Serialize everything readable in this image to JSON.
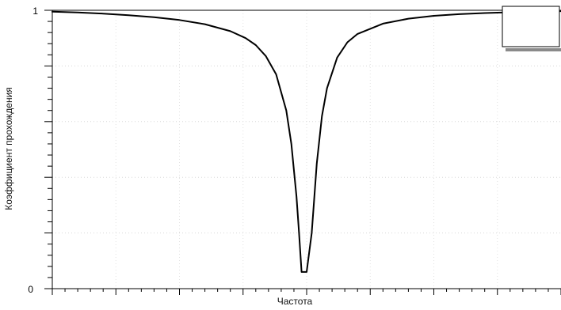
{
  "chart_data": {
    "type": "line",
    "title": "",
    "xlabel": "Частота",
    "ylabel": "Коэффициент прохождения",
    "ylim": [
      0,
      1
    ],
    "y_tick_labels": [
      "0",
      "1"
    ],
    "x_tick_labels": [],
    "grid": "faint dotted",
    "legend": {
      "placement": "top-right",
      "entries": []
    },
    "series": [
      {
        "color": "#000000",
        "x": [
          0.0,
          0.05,
          0.1,
          0.15,
          0.2,
          0.25,
          0.3,
          0.35,
          0.38,
          0.4,
          0.42,
          0.44,
          0.46,
          0.47,
          0.48,
          0.485,
          0.49,
          0.5,
          0.51,
          0.52,
          0.53,
          0.54,
          0.56,
          0.58,
          0.6,
          0.65,
          0.7,
          0.75,
          0.8,
          0.85,
          0.9,
          0.95,
          1.0
        ],
        "y": [
          0.995,
          0.992,
          0.988,
          0.982,
          0.975,
          0.965,
          0.95,
          0.925,
          0.9,
          0.875,
          0.835,
          0.77,
          0.64,
          0.52,
          0.33,
          0.2,
          0.06,
          0.06,
          0.2,
          0.45,
          0.62,
          0.72,
          0.83,
          0.885,
          0.915,
          0.952,
          0.97,
          0.98,
          0.986,
          0.99,
          0.993,
          0.995,
          0.997
        ]
      }
    ]
  }
}
